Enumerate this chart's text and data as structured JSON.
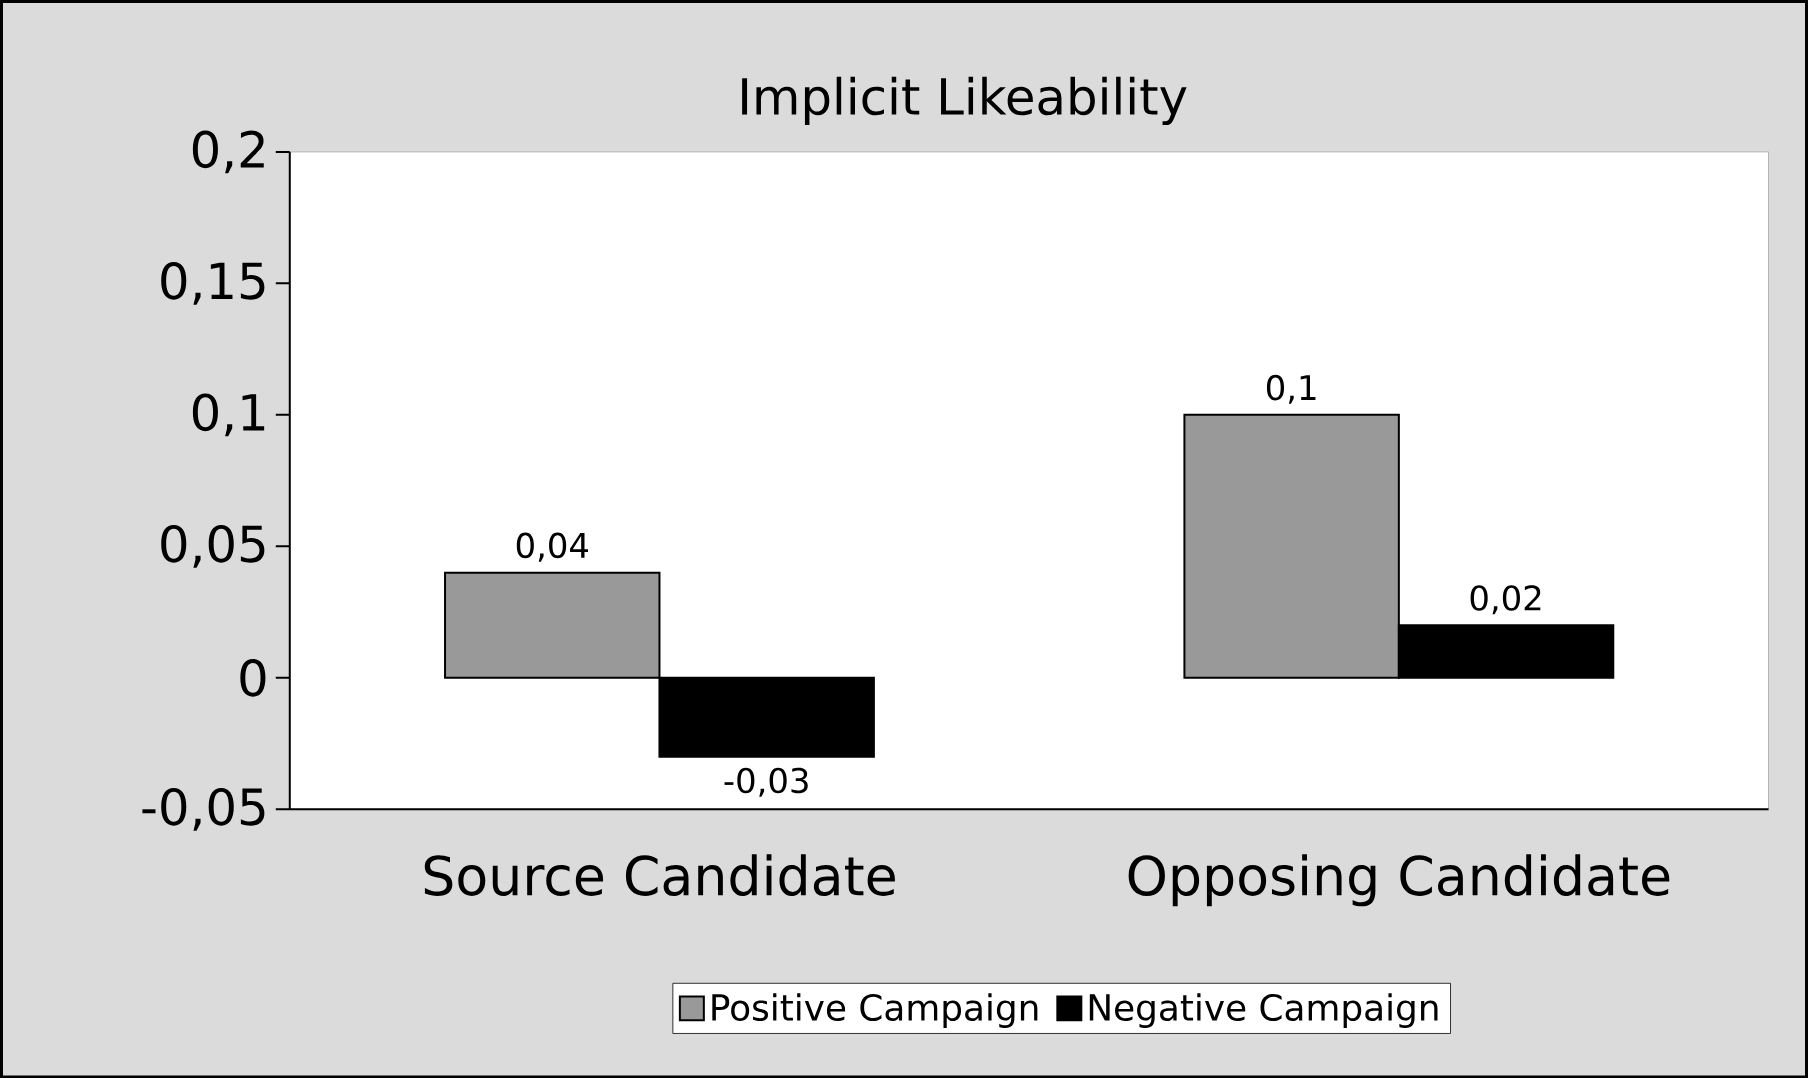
{
  "chart_data": {
    "type": "bar",
    "title": "Implicit Likeability",
    "categories": [
      "Source Candidate",
      "Opposing Candidate"
    ],
    "series": [
      {
        "name": "Positive Campaign",
        "color": "#999999",
        "values": [
          0.04,
          0.1
        ],
        "value_labels": [
          "0,04",
          "0,1"
        ]
      },
      {
        "name": "Negative Campaign",
        "color": "#000000",
        "values": [
          -0.03,
          0.02
        ],
        "value_labels": [
          "-0,03",
          "0,02"
        ]
      }
    ],
    "ylim": [
      -0.05,
      0.2
    ],
    "yticks": [
      {
        "value": -0.05,
        "label": "-0,05"
      },
      {
        "value": 0,
        "label": "0"
      },
      {
        "value": 0.05,
        "label": "0,05"
      },
      {
        "value": 0.1,
        "label": "0,1"
      },
      {
        "value": 0.15,
        "label": "0,15"
      },
      {
        "value": 0.2,
        "label": "0,2"
      }
    ],
    "legend": "bottom"
  }
}
